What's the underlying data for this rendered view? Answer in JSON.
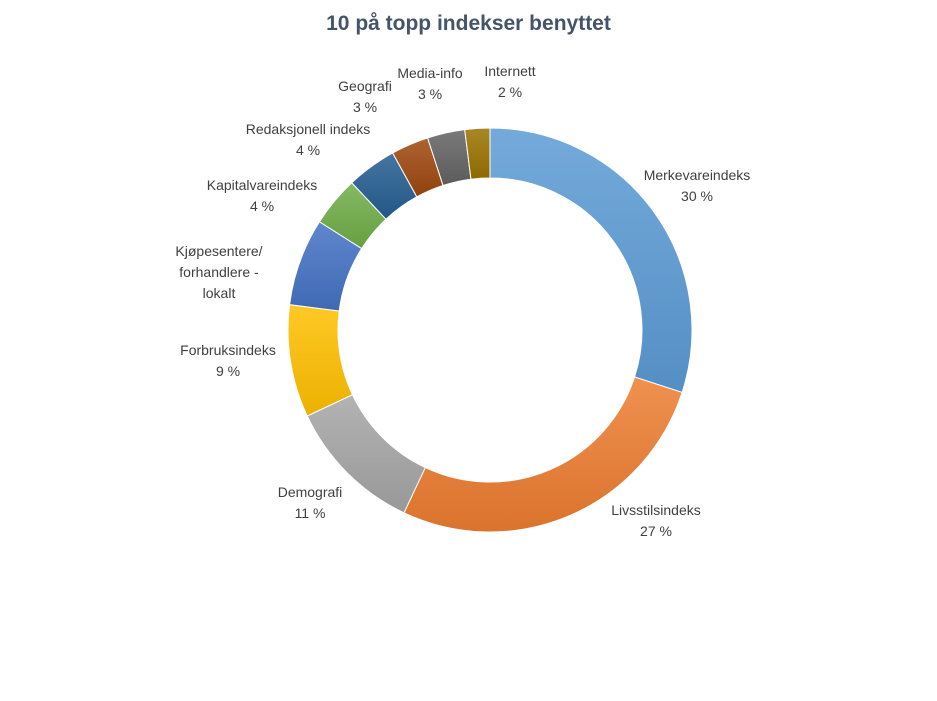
{
  "chart_data": {
    "type": "pie",
    "variant": "donut",
    "title": "10 på topp indekser benyttet",
    "slices": [
      {
        "name": "Merkevareindeks",
        "label": [
          "Merkevareindeks"
        ],
        "value_label": "30 %",
        "value": 30,
        "color": "#5b9bd5"
      },
      {
        "name": "Livsstilsindeks",
        "label": [
          "Livsstilsindeks"
        ],
        "value_label": "27 %",
        "value": 27,
        "color": "#ed7d31"
      },
      {
        "name": "Demografi",
        "label": [
          "Demografi"
        ],
        "value_label": "11 %",
        "value": 11,
        "color": "#a5a5a5"
      },
      {
        "name": "Forbruksindeks",
        "label": [
          "Forbruksindeks"
        ],
        "value_label": "9 %",
        "value": 9,
        "color": "#ffc000"
      },
      {
        "name": "Kjøpesentere/ forhandlere - lokalt",
        "label": [
          "Kjøpesentere/",
          "forhandlere -",
          "lokalt"
        ],
        "value_label": "",
        "value": 7,
        "color": "#4472c4"
      },
      {
        "name": "Kapitalvareindeks",
        "label": [
          "Kapitalvareindeks"
        ],
        "value_label": "4 %",
        "value": 4,
        "color": "#70ad47"
      },
      {
        "name": "Redaksjonell indeks",
        "label": [
          "Redaksjonell indeks"
        ],
        "value_label": "4 %",
        "value": 4,
        "color": "#255e91"
      },
      {
        "name": "Geografi",
        "label": [
          "Geografi"
        ],
        "value_label": "3 %",
        "value": 3,
        "color": "#9e480e"
      },
      {
        "name": "Media-info",
        "label": [
          "Media-info"
        ],
        "value_label": "3 %",
        "value": 3,
        "color": "#636363"
      },
      {
        "name": "Internett",
        "label": [
          "Internett"
        ],
        "value_label": "2 %",
        "value": 2,
        "color": "#997300"
      }
    ],
    "legend": "none"
  }
}
